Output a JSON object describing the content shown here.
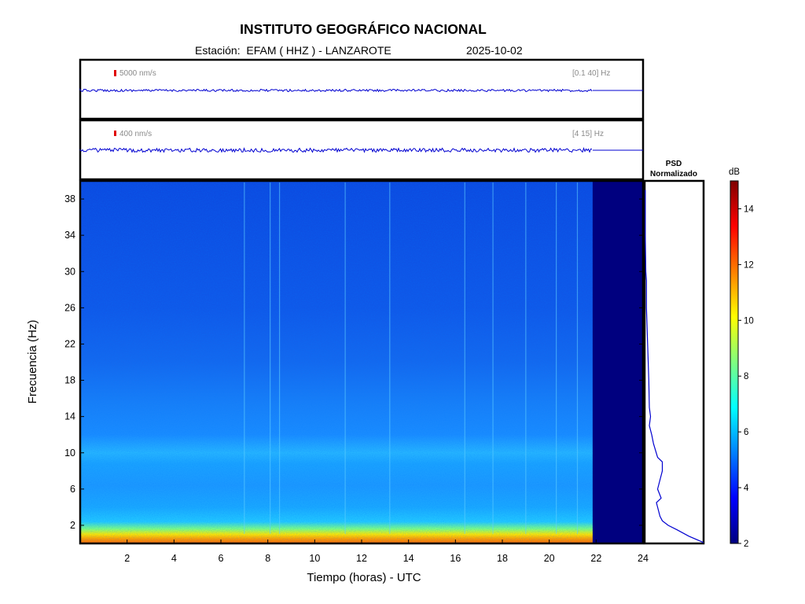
{
  "header": {
    "title": "INSTITUTO GEOGRÁFICO NACIONAL",
    "station": "Estación:  EFAM ( HHZ ) - LANZAROTE",
    "date": "2025-10-02"
  },
  "chart_data": [
    {
      "type": "line",
      "panel": "seismogram-broadband",
      "scale_label": "5000 nm/s",
      "band_label": "[0.1 40] Hz",
      "x": [
        0,
        21.85
      ],
      "note_data_ends_hour": 21.85
    },
    {
      "type": "line",
      "panel": "seismogram-filtered",
      "scale_label": "400 nm/s",
      "band_label": "[4 15] Hz",
      "x": [
        0,
        21.85
      ]
    },
    {
      "type": "heatmap",
      "panel": "spectrogram",
      "xlabel": "Tiempo (horas) - UTC",
      "ylabel": "Frecuencia  (Hz)",
      "xlim": [
        0,
        24
      ],
      "ylim": [
        0,
        40
      ],
      "xticks": [
        "2",
        "4",
        "6",
        "8",
        "10",
        "12",
        "14",
        "16",
        "18",
        "20",
        "22",
        "24"
      ],
      "yticks": [
        "2",
        "6",
        "10",
        "14",
        "18",
        "22",
        "26",
        "30",
        "34",
        "38"
      ],
      "data_ends_hour": 21.85,
      "colormap": "jet"
    },
    {
      "type": "line",
      "panel": "psd",
      "title_line1": "PSD",
      "title_line2": "Normalizado",
      "x": [
        0.01,
        0.01,
        0.02,
        0.03,
        0.03,
        0.05,
        0.07,
        0.08,
        0.1,
        0.08,
        0.12,
        0.15,
        0.22,
        0.3,
        0.3,
        0.22,
        0.28,
        0.2,
        0.26,
        0.3,
        0.4,
        0.55,
        0.75,
        1.0
      ],
      "y": [
        39,
        34,
        30,
        29,
        26,
        22,
        18,
        15,
        14,
        13,
        12,
        11,
        9.5,
        9,
        8,
        6,
        5,
        4.5,
        3,
        2.5,
        2,
        1.5,
        0.8,
        0.1
      ]
    },
    {
      "type": "heatmap",
      "panel": "colorbar",
      "label": "dB",
      "range": [
        2,
        15
      ],
      "ticks": [
        "2",
        "4",
        "6",
        "8",
        "10",
        "12",
        "14"
      ]
    }
  ]
}
